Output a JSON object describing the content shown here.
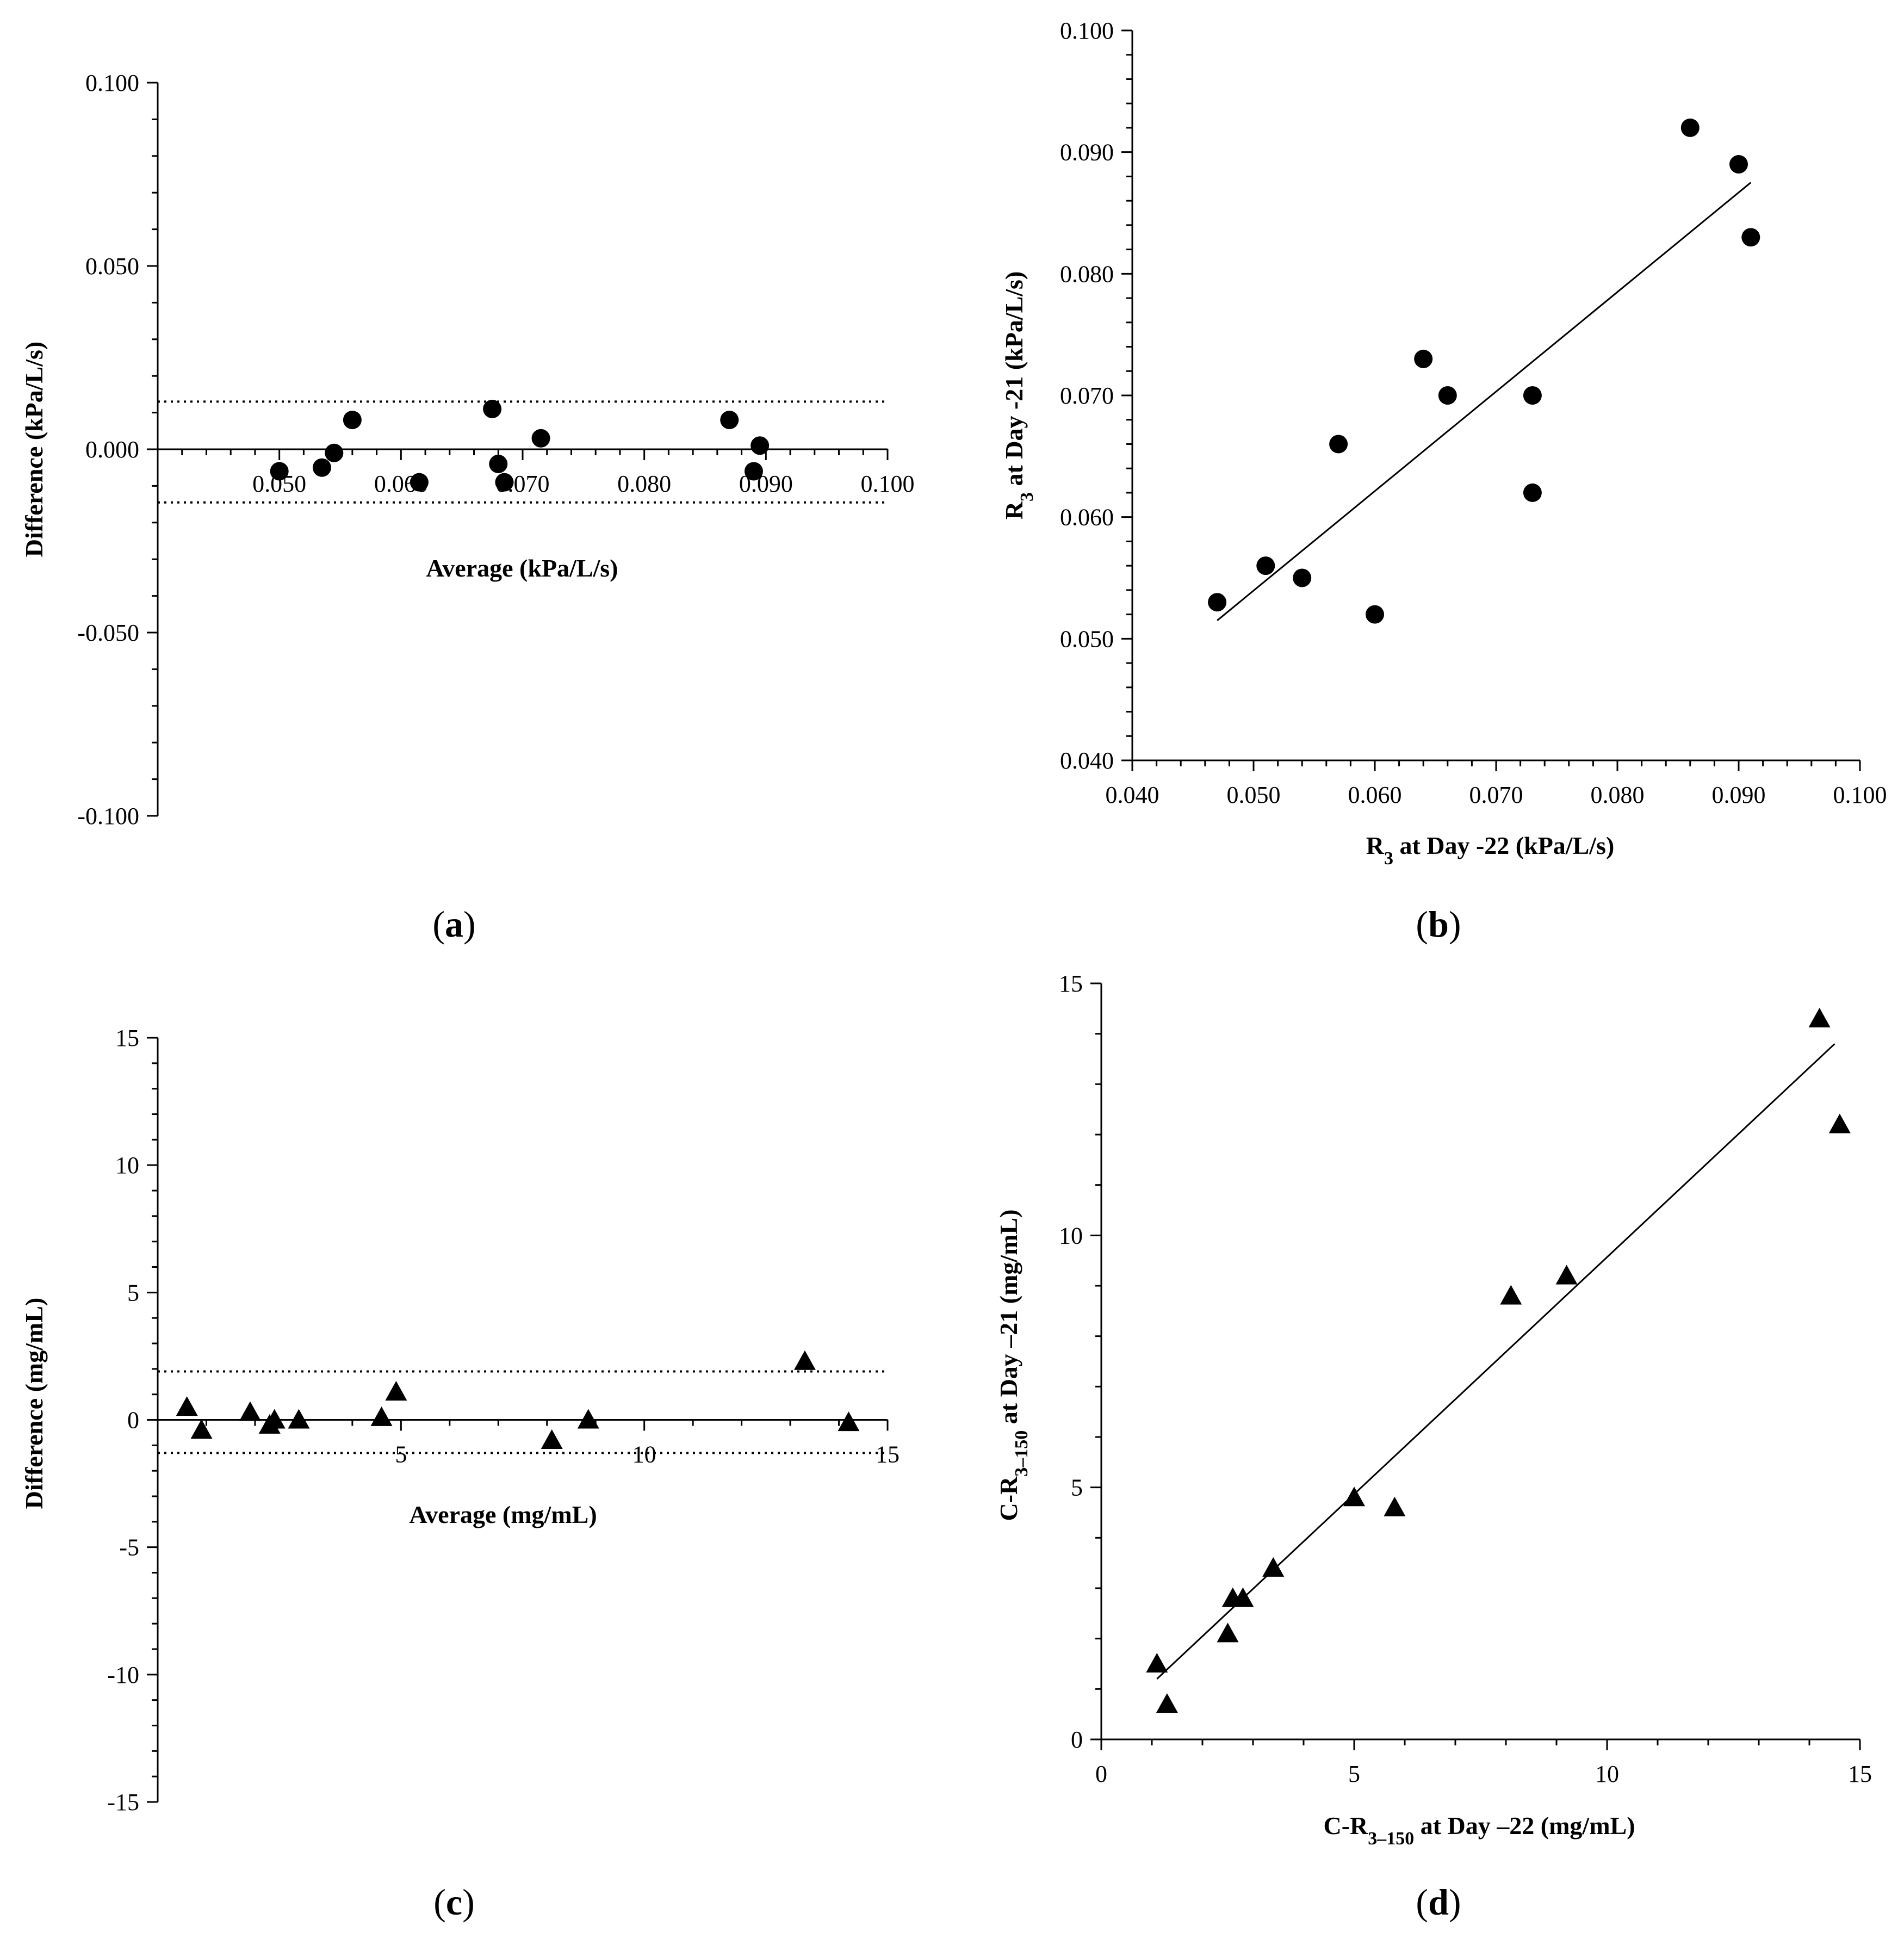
{
  "chart_data": [
    {
      "id": "a",
      "panel_label": "a",
      "type": "scatter",
      "title": "",
      "xlabel": "Average (kPa/L/s)",
      "ylabel": "Difference (kPa/L/s)",
      "xlim": [
        0.04,
        0.1
      ],
      "ylim": [
        -0.1,
        0.1
      ],
      "xticks": [
        "0.050",
        "0.060",
        "0.070",
        "0.080",
        "0.090",
        "0.100"
      ],
      "xtick_values": [
        0.05,
        0.06,
        0.07,
        0.08,
        0.09,
        0.1
      ],
      "yticks": [
        "0.100",
        "0.050",
        "0.000",
        "-0.050",
        "-0.100"
      ],
      "ytick_values": [
        0.1,
        0.05,
        0.0,
        -0.05,
        -0.1
      ],
      "marker": "circle",
      "x_axis_at": 0,
      "mean_line": 0.0,
      "limits_of_agreement": [
        0.013,
        -0.0145
      ],
      "points": {
        "x": [
          0.05,
          0.0535,
          0.0545,
          0.056,
          0.0615,
          0.0675,
          0.068,
          0.0685,
          0.0715,
          0.087,
          0.089,
          0.0895
        ],
        "y": [
          -0.006,
          -0.005,
          -0.001,
          0.008,
          -0.009,
          0.011,
          -0.004,
          -0.009,
          0.003,
          0.008,
          -0.006,
          0.001
        ]
      }
    },
    {
      "id": "b",
      "panel_label": "b",
      "type": "scatter",
      "title": "",
      "xlabel": "R",
      "xlabel_sub": "3",
      "xlabel_rest": " at Day -22 (kPa/L/s)",
      "ylabel": "R",
      "ylabel_sub": "3",
      "ylabel_rest": " at Day -21 (kPa/L/s)",
      "xlim": [
        0.04,
        0.1
      ],
      "ylim": [
        0.04,
        0.1
      ],
      "xticks": [
        "0.040",
        "0.050",
        "0.060",
        "0.070",
        "0.080",
        "0.090",
        "0.100"
      ],
      "xtick_values": [
        0.04,
        0.05,
        0.06,
        0.07,
        0.08,
        0.09,
        0.1
      ],
      "yticks": [
        "0.100",
        "0.090",
        "0.080",
        "0.070",
        "0.060",
        "0.050",
        "0.040"
      ],
      "ytick_values": [
        0.1,
        0.09,
        0.08,
        0.07,
        0.06,
        0.05,
        0.04
      ],
      "marker": "circle",
      "x_axis_at": 0.04,
      "regression_line": {
        "x": [
          0.047,
          0.091
        ],
        "y": [
          0.0515,
          0.0875
        ]
      },
      "points": {
        "x": [
          0.047,
          0.051,
          0.054,
          0.057,
          0.06,
          0.064,
          0.066,
          0.073,
          0.073,
          0.086,
          0.09,
          0.091
        ],
        "y": [
          0.053,
          0.056,
          0.055,
          0.066,
          0.052,
          0.073,
          0.07,
          0.07,
          0.062,
          0.092,
          0.089,
          0.083
        ]
      }
    },
    {
      "id": "c",
      "panel_label": "c",
      "type": "scatter",
      "title": "",
      "xlabel": "Average (mg/mL)",
      "ylabel": "Difference (mg/mL)",
      "xlim": [
        0,
        15
      ],
      "ylim": [
        -15,
        15
      ],
      "xticks": [
        "5",
        "10",
        "15"
      ],
      "xtick_values": [
        5,
        10,
        15
      ],
      "yticks": [
        "15",
        "10",
        "5",
        "0",
        "-5",
        "-10",
        "-15"
      ],
      "ytick_values": [
        15,
        10,
        5,
        0,
        -5,
        -10,
        -15
      ],
      "marker": "triangle",
      "x_axis_at": 0,
      "mean_line": 0,
      "limits_of_agreement": [
        1.9,
        -1.3
      ],
      "points": {
        "x": [
          0.6,
          0.9,
          1.9,
          2.3,
          2.4,
          2.9,
          4.6,
          4.9,
          8.1,
          8.85,
          13.3,
          14.2
        ],
        "y": [
          0.5,
          -0.4,
          0.3,
          -0.2,
          0.0,
          0.0,
          0.1,
          1.1,
          -0.8,
          0.0,
          2.3,
          -0.1
        ]
      }
    },
    {
      "id": "d",
      "panel_label": "d",
      "type": "scatter",
      "title": "",
      "xlabel": "C-R",
      "xlabel_sub": "3–150",
      "xlabel_rest": " at Day –22 (mg/mL)",
      "ylabel": "C-R",
      "ylabel_sub": "3–150",
      "ylabel_rest": " at Day –21 (mg/mL)",
      "xlim": [
        0,
        15
      ],
      "ylim": [
        0,
        15
      ],
      "xticks": [
        "0",
        "5",
        "10",
        "15"
      ],
      "xtick_values": [
        0,
        5,
        10,
        15
      ],
      "yticks": [
        "15",
        "10",
        "5",
        "0"
      ],
      "ytick_values": [
        15,
        10,
        5,
        0
      ],
      "marker": "triangle",
      "x_axis_at": 0,
      "regression_line": {
        "x": [
          1.1,
          14.5
        ],
        "y": [
          1.2,
          13.8
        ]
      },
      "points": {
        "x": [
          1.1,
          1.3,
          2.5,
          2.6,
          2.8,
          3.4,
          5.0,
          5.8,
          8.1,
          9.2,
          14.2,
          14.6
        ],
        "y": [
          1.5,
          0.7,
          2.1,
          2.8,
          2.8,
          3.4,
          4.8,
          4.6,
          8.8,
          9.2,
          14.3,
          12.2
        ]
      }
    }
  ]
}
